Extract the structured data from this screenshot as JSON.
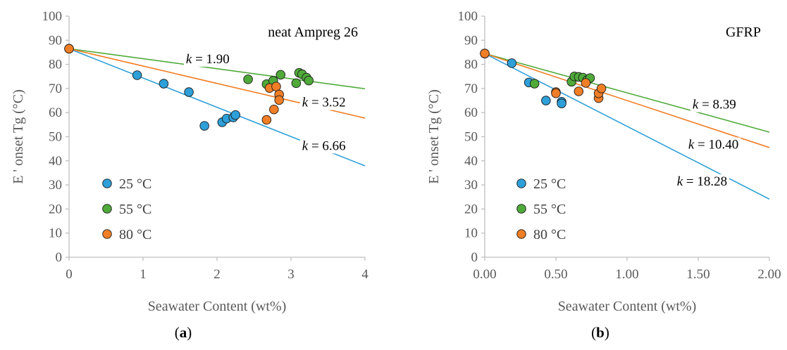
{
  "colors": {
    "series_25": "#2E9FD8",
    "series_55": "#4FAA3A",
    "series_80": "#F07E26",
    "axis": "#BFBFBF",
    "text": "#595959"
  },
  "chart_data": [
    {
      "type": "scatter",
      "panel_title": "neat Ampreg 26",
      "caption": {
        "open": "(",
        "letter": "a",
        "close": ")"
      },
      "xlabel": "Seawater Content (wt%)",
      "ylabel": "E ' onset Tg (°C)",
      "xlim": [
        0,
        4
      ],
      "ylim": [
        0,
        100
      ],
      "xticks": [
        0,
        1,
        2,
        3,
        4
      ],
      "xtick_labels": [
        "0",
        "1",
        "2",
        "3",
        "4"
      ],
      "yticks": [
        0,
        10,
        20,
        30,
        40,
        50,
        60,
        70,
        80,
        90,
        100
      ],
      "ytick_labels": [
        "0",
        "10",
        "20",
        "30",
        "40",
        "50",
        "60",
        "70",
        "80",
        "90",
        "100"
      ],
      "legend": {
        "placement": "bottom-left",
        "entries": [
          "25 °C",
          "55 °C",
          "80 °C"
        ]
      },
      "series": [
        {
          "name": "25 °C",
          "color_key": "series_25",
          "points": [
            [
              0,
              86.5
            ],
            [
              0.92,
              75.5
            ],
            [
              1.28,
              72
            ],
            [
              1.62,
              68.5
            ],
            [
              1.83,
              54.5
            ],
            [
              2.07,
              56
            ],
            [
              2.13,
              57.5
            ],
            [
              2.22,
              58
            ],
            [
              2.25,
              59
            ]
          ],
          "fit": {
            "x": [
              0,
              4
            ],
            "y": [
              86.5,
              37.9
            ]
          },
          "annotation": {
            "k_symbol": "k",
            "text": " = 6.66",
            "x": 3.15,
            "y": 44.5
          }
        },
        {
          "name": "55 °C",
          "color_key": "series_55",
          "points": [
            [
              2.42,
              73.8
            ],
            [
              2.67,
              71.8
            ],
            [
              2.76,
              73.2
            ],
            [
              2.86,
              75.7
            ],
            [
              3.07,
              72.2
            ],
            [
              3.11,
              76.5
            ],
            [
              3.15,
              75.9
            ],
            [
              3.21,
              74.5
            ],
            [
              3.24,
              73.3
            ]
          ],
          "fit": {
            "x": [
              0,
              4
            ],
            "y": [
              86.5,
              69.9
            ]
          },
          "annotation": {
            "k_symbol": "k",
            "text": " = 1.90",
            "x": 1.58,
            "y": 80.5
          }
        },
        {
          "name": "80 °C",
          "color_key": "series_80",
          "points": [
            [
              0,
              86.5
            ],
            [
              2.67,
              57
            ],
            [
              2.71,
              70.2
            ],
            [
              2.77,
              61.3
            ],
            [
              2.8,
              70.8
            ],
            [
              2.84,
              67.5
            ],
            [
              2.84,
              65.2
            ]
          ],
          "fit": {
            "x": [
              0,
              4
            ],
            "y": [
              86.5,
              57.7
            ]
          },
          "annotation": {
            "k_symbol": "k",
            "text": " = 3.52",
            "x": 3.15,
            "y": 62.5
          }
        }
      ]
    },
    {
      "type": "scatter",
      "panel_title": "GFRP",
      "caption": {
        "open": "(",
        "letter": "b",
        "close": ")"
      },
      "xlabel": "Seawater Content (wt%)",
      "ylabel": "E ' onset Tg (°C)",
      "xlim": [
        0,
        2
      ],
      "ylim": [
        0,
        100
      ],
      "xticks": [
        0,
        0.5,
        1,
        1.5,
        2
      ],
      "xtick_labels": [
        "0.00",
        "0.50",
        "1.00",
        "1.50",
        "2.00"
      ],
      "yticks": [
        0,
        10,
        20,
        30,
        40,
        50,
        60,
        70,
        80,
        90,
        100
      ],
      "ytick_labels": [
        "0",
        "10",
        "20",
        "30",
        "40",
        "50",
        "60",
        "70",
        "80",
        "90",
        "100"
      ],
      "legend": {
        "placement": "bottom-left",
        "entries": [
          "25 °C",
          "55 °C",
          "80 °C"
        ]
      },
      "series": [
        {
          "name": "25 °C",
          "color_key": "series_25",
          "points": [
            [
              0,
              84.5
            ],
            [
              0.19,
              80.5
            ],
            [
              0.31,
              72.5
            ],
            [
              0.43,
              65
            ],
            [
              0.54,
              64.5
            ],
            [
              0.54,
              63.8
            ]
          ],
          "fit": {
            "x": [
              0,
              2
            ],
            "y": [
              84.5,
              24.1
            ]
          },
          "annotation": {
            "k_symbol": "k",
            "text": " = 18.28",
            "x": 1.35,
            "y": 29.8
          }
        },
        {
          "name": "55 °C",
          "color_key": "series_55",
          "points": [
            [
              0.35,
              72
            ],
            [
              0.61,
              72.8
            ],
            [
              0.63,
              75
            ],
            [
              0.66,
              74.8
            ],
            [
              0.69,
              74.5
            ],
            [
              0.72,
              73.5
            ],
            [
              0.74,
              74.3
            ]
          ],
          "fit": {
            "x": [
              0,
              2
            ],
            "y": [
              84.5,
              51.9
            ]
          },
          "annotation": {
            "k_symbol": "k",
            "text": " = 8.39",
            "x": 1.46,
            "y": 61.6
          }
        },
        {
          "name": "80 °C",
          "color_key": "series_80",
          "points": [
            [
              0,
              84.5
            ],
            [
              0.5,
              68.5
            ],
            [
              0.5,
              68
            ],
            [
              0.66,
              68.8
            ],
            [
              0.71,
              72.3
            ],
            [
              0.8,
              66
            ],
            [
              0.8,
              68
            ],
            [
              0.82,
              70
            ]
          ],
          "fit": {
            "x": [
              0,
              2
            ],
            "y": [
              84.5,
              45.5
            ]
          },
          "annotation": {
            "k_symbol": "k",
            "text": " = 10.40",
            "x": 1.43,
            "y": 45
          }
        }
      ]
    }
  ]
}
